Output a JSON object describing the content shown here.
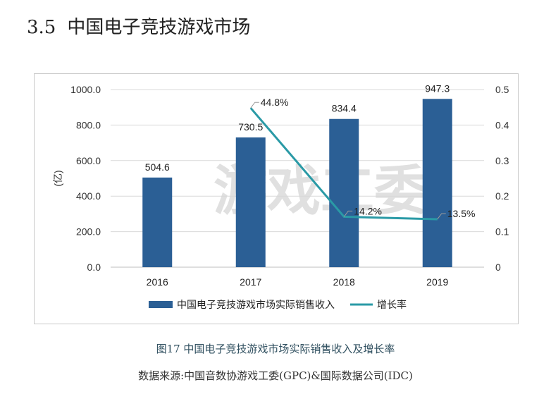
{
  "section": {
    "number": "3.5",
    "title": "中国电子竞技游戏市场"
  },
  "watermark": "游戏工委",
  "caption": "图17  中国电子竞技游戏市场实际销售收入及增长率",
  "source": "数据来源:中国音数协游戏工委(GPC)&国际数据公司(IDC)",
  "colors": {
    "bar": "#2b5f95",
    "line": "#2a9aa6",
    "grid": "#d9d9d9",
    "watermark": "#d6d6d6"
  },
  "chart_data": {
    "type": "bar",
    "categories": [
      "2016",
      "2017",
      "2018",
      "2019"
    ],
    "ylabel": "(亿)",
    "ylim": [
      0,
      1000
    ],
    "y_ticks": [
      "0.0",
      "200.0",
      "400.0",
      "600.0",
      "800.0",
      "1000.0"
    ],
    "y2lim": [
      0,
      0.5
    ],
    "y2_ticks": [
      "0",
      "0.1",
      "0.2",
      "0.3",
      "0.4",
      "0.5"
    ],
    "grid": true,
    "legend_position": "bottom",
    "series": [
      {
        "name": "中国电子竞技游戏市场实际销售收入",
        "type": "bar",
        "axis": "left",
        "values": [
          504.6,
          730.5,
          834.4,
          947.3
        ],
        "labels": [
          "504.6",
          "730.5",
          "834.4",
          "947.3"
        ]
      },
      {
        "name": "增长率",
        "type": "line",
        "axis": "right",
        "values": [
          null,
          0.448,
          0.142,
          0.135
        ],
        "labels": [
          "",
          "44.8%",
          "14.2%",
          "13.5%"
        ]
      }
    ]
  }
}
